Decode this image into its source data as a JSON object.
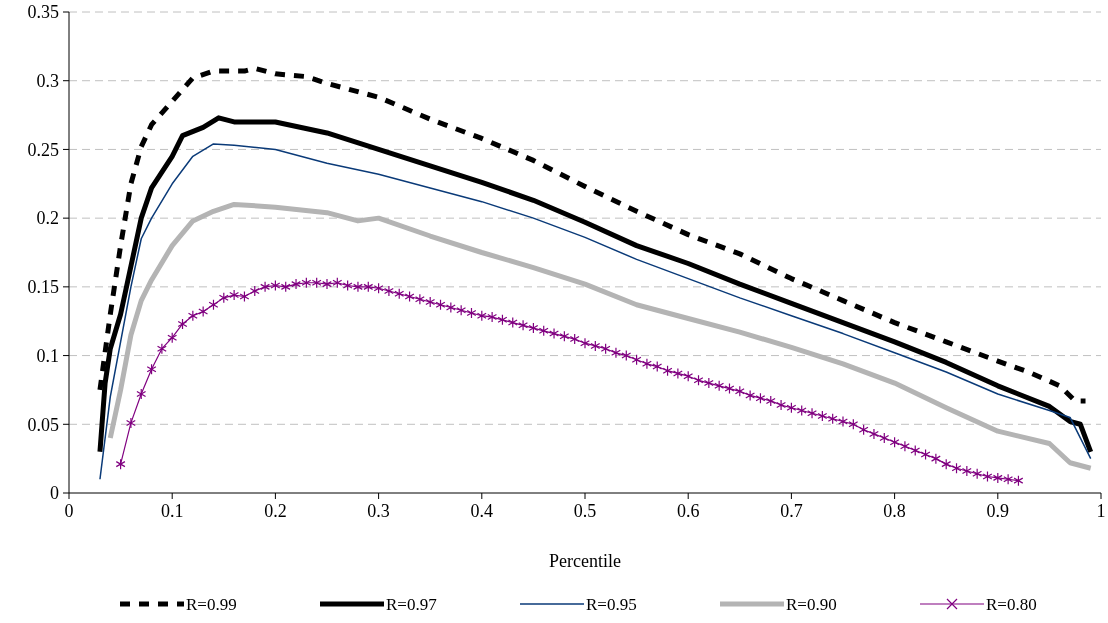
{
  "chart_data": {
    "type": "line",
    "xlabel": "Percentile",
    "xlim": [
      0,
      1
    ],
    "ylim": [
      0,
      0.35
    ],
    "xticks": [
      0,
      0.1,
      0.2,
      0.3,
      0.4,
      0.5,
      0.6,
      0.7,
      0.8,
      0.9,
      1
    ],
    "yticks": [
      0,
      0.05,
      0.1,
      0.15,
      0.2,
      0.25,
      0.3,
      0.35
    ],
    "grid": "y",
    "legend": "bottom",
    "series": [
      {
        "name": "R=0.99",
        "color": "#000000",
        "line_style": "dashed",
        "marker": "none",
        "x": [
          0.03,
          0.04,
          0.05,
          0.06,
          0.07,
          0.08,
          0.1,
          0.12,
          0.14,
          0.17,
          0.18,
          0.2,
          0.23,
          0.25,
          0.3,
          0.35,
          0.4,
          0.45,
          0.5,
          0.55,
          0.6,
          0.65,
          0.7,
          0.75,
          0.8,
          0.85,
          0.9,
          0.93,
          0.96,
          0.975,
          0.985
        ],
        "values": [
          0.075,
          0.13,
          0.18,
          0.225,
          0.252,
          0.268,
          0.285,
          0.302,
          0.307,
          0.307,
          0.309,
          0.305,
          0.303,
          0.298,
          0.288,
          0.272,
          0.258,
          0.242,
          0.223,
          0.205,
          0.188,
          0.174,
          0.156,
          0.14,
          0.124,
          0.11,
          0.096,
          0.088,
          0.078,
          0.067,
          0.067
        ]
      },
      {
        "name": "R=0.97",
        "color": "#000000",
        "line_style": "solid",
        "marker": "none",
        "x": [
          0.03,
          0.035,
          0.04,
          0.05,
          0.06,
          0.07,
          0.08,
          0.1,
          0.11,
          0.13,
          0.145,
          0.16,
          0.2,
          0.25,
          0.3,
          0.35,
          0.4,
          0.45,
          0.5,
          0.55,
          0.6,
          0.65,
          0.7,
          0.75,
          0.8,
          0.85,
          0.9,
          0.95,
          0.97,
          0.98,
          0.99
        ],
        "values": [
          0.03,
          0.08,
          0.105,
          0.13,
          0.165,
          0.2,
          0.222,
          0.245,
          0.26,
          0.266,
          0.273,
          0.27,
          0.27,
          0.262,
          0.25,
          0.238,
          0.226,
          0.213,
          0.197,
          0.18,
          0.167,
          0.152,
          0.138,
          0.124,
          0.11,
          0.095,
          0.078,
          0.063,
          0.052,
          0.05,
          0.03
        ]
      },
      {
        "name": "R=0.95",
        "color": "#0a3a78",
        "line_style": "solid",
        "marker": "none",
        "x": [
          0.03,
          0.04,
          0.05,
          0.06,
          0.07,
          0.08,
          0.1,
          0.12,
          0.14,
          0.16,
          0.2,
          0.25,
          0.3,
          0.35,
          0.4,
          0.45,
          0.5,
          0.55,
          0.6,
          0.65,
          0.7,
          0.75,
          0.8,
          0.85,
          0.9,
          0.95,
          0.97,
          0.99
        ],
        "values": [
          0.01,
          0.07,
          0.11,
          0.15,
          0.185,
          0.2,
          0.225,
          0.245,
          0.254,
          0.253,
          0.25,
          0.24,
          0.232,
          0.222,
          0.212,
          0.2,
          0.186,
          0.17,
          0.156,
          0.142,
          0.129,
          0.116,
          0.102,
          0.088,
          0.072,
          0.06,
          0.055,
          0.025
        ]
      },
      {
        "name": "R=0.90",
        "color": "#b4b4b4",
        "line_style": "solid",
        "marker": "none",
        "x": [
          0.04,
          0.05,
          0.06,
          0.07,
          0.08,
          0.1,
          0.12,
          0.14,
          0.16,
          0.2,
          0.25,
          0.28,
          0.3,
          0.35,
          0.4,
          0.45,
          0.5,
          0.55,
          0.6,
          0.65,
          0.7,
          0.75,
          0.8,
          0.85,
          0.9,
          0.95,
          0.97,
          0.99
        ],
        "values": [
          0.04,
          0.075,
          0.115,
          0.14,
          0.155,
          0.18,
          0.198,
          0.205,
          0.21,
          0.208,
          0.204,
          0.198,
          0.2,
          0.187,
          0.175,
          0.164,
          0.152,
          0.137,
          0.127,
          0.117,
          0.106,
          0.094,
          0.08,
          0.062,
          0.045,
          0.036,
          0.022,
          0.018
        ]
      },
      {
        "name": "R=0.80",
        "color": "#800080",
        "line_style": "solid",
        "marker": "cross",
        "x": [
          0.05,
          0.06,
          0.07,
          0.08,
          0.09,
          0.1,
          0.11,
          0.12,
          0.13,
          0.14,
          0.15,
          0.16,
          0.17,
          0.18,
          0.19,
          0.2,
          0.21,
          0.22,
          0.23,
          0.24,
          0.25,
          0.26,
          0.27,
          0.28,
          0.29,
          0.3,
          0.31,
          0.32,
          0.33,
          0.34,
          0.35,
          0.36,
          0.37,
          0.38,
          0.39,
          0.4,
          0.41,
          0.42,
          0.43,
          0.44,
          0.45,
          0.46,
          0.47,
          0.48,
          0.49,
          0.5,
          0.51,
          0.52,
          0.53,
          0.54,
          0.55,
          0.56,
          0.57,
          0.58,
          0.59,
          0.6,
          0.61,
          0.62,
          0.63,
          0.64,
          0.65,
          0.66,
          0.67,
          0.68,
          0.69,
          0.7,
          0.71,
          0.72,
          0.73,
          0.74,
          0.75,
          0.76,
          0.77,
          0.78,
          0.79,
          0.8,
          0.81,
          0.82,
          0.83,
          0.84,
          0.85,
          0.86,
          0.87,
          0.88,
          0.89,
          0.9,
          0.91,
          0.92
        ],
        "values": [
          0.021,
          0.051,
          0.072,
          0.09,
          0.105,
          0.113,
          0.123,
          0.129,
          0.132,
          0.137,
          0.142,
          0.144,
          0.143,
          0.147,
          0.15,
          0.151,
          0.15,
          0.152,
          0.153,
          0.153,
          0.152,
          0.153,
          0.151,
          0.15,
          0.15,
          0.149,
          0.147,
          0.145,
          0.143,
          0.141,
          0.139,
          0.137,
          0.135,
          0.133,
          0.131,
          0.129,
          0.128,
          0.126,
          0.124,
          0.122,
          0.12,
          0.118,
          0.116,
          0.114,
          0.112,
          0.109,
          0.107,
          0.105,
          0.102,
          0.1,
          0.097,
          0.094,
          0.092,
          0.089,
          0.087,
          0.085,
          0.082,
          0.08,
          0.078,
          0.076,
          0.074,
          0.071,
          0.069,
          0.067,
          0.064,
          0.062,
          0.06,
          0.058,
          0.056,
          0.054,
          0.052,
          0.05,
          0.046,
          0.043,
          0.04,
          0.037,
          0.034,
          0.031,
          0.028,
          0.025,
          0.021,
          0.018,
          0.016,
          0.014,
          0.012,
          0.011,
          0.01,
          0.009
        ]
      }
    ]
  }
}
